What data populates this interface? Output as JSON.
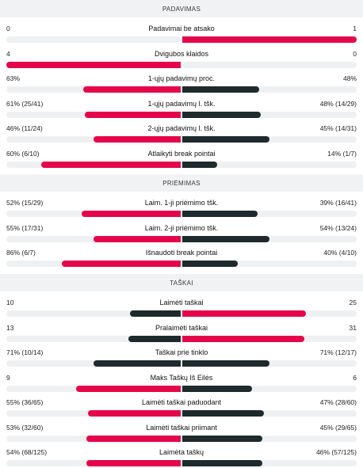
{
  "colors": {
    "accent": "#e4054a",
    "dark": "#1e2a2c",
    "track": "#eef0f2",
    "header_bg": "#f1f2f4"
  },
  "sections": [
    {
      "title": "PADAVIMAS",
      "stats": [
        {
          "label": "Padavimai be atsako",
          "home": "0",
          "away": "1",
          "home_frac": 0.0,
          "away_frac": 1.0,
          "leader": "away"
        },
        {
          "label": "Dvigubos klaidos",
          "home": "4",
          "away": "0",
          "home_frac": 1.0,
          "away_frac": 0.0,
          "leader": "home"
        },
        {
          "label": "1-ųjų padavimų proc.",
          "home": "63%",
          "away": "48%",
          "home_frac": 0.56,
          "away_frac": 0.44,
          "leader": "home"
        },
        {
          "label": "1-ųjų padavimų l. tšk.",
          "home": "61% (25/41)",
          "away": "48% (14/29)",
          "home_frac": 0.55,
          "away_frac": 0.45,
          "leader": "home"
        },
        {
          "label": "2-ųjų padavimų l. tšk.",
          "home": "46% (11/24)",
          "away": "45% (14/31)",
          "home_frac": 0.5,
          "away_frac": 0.5,
          "leader": "home"
        },
        {
          "label": "Atlaikyti break pointai",
          "home": "60% (6/10)",
          "away": "14% (1/7)",
          "home_frac": 0.8,
          "away_frac": 0.2,
          "leader": "home"
        }
      ]
    },
    {
      "title": "PRIĖMIMAS",
      "stats": [
        {
          "label": "Laim. 1-ji priėmimo tšk.",
          "home": "52% (15/29)",
          "away": "39% (16/41)",
          "home_frac": 0.57,
          "away_frac": 0.43,
          "leader": "home"
        },
        {
          "label": "Laim. 2-ji priėmimo tšk.",
          "home": "55% (17/31)",
          "away": "54% (13/24)",
          "home_frac": 0.5,
          "away_frac": 0.5,
          "leader": "home"
        },
        {
          "label": "Išnaudoti break pointai",
          "home": "86% (6/7)",
          "away": "40% (4/10)",
          "home_frac": 0.68,
          "away_frac": 0.32,
          "leader": "home"
        }
      ]
    },
    {
      "title": "TAŠKAI",
      "stats": [
        {
          "label": "Laimėti taškai",
          "home": "10",
          "away": "25",
          "home_frac": 0.29,
          "away_frac": 0.71,
          "leader": "away"
        },
        {
          "label": "Pralaimėti taškai",
          "home": "13",
          "away": "31",
          "home_frac": 0.3,
          "away_frac": 0.7,
          "leader": "away"
        },
        {
          "label": "Taškai prie tinklo",
          "home": "71% (10/14)",
          "away": "71% (12/17)",
          "home_frac": 0.5,
          "away_frac": 0.5,
          "leader": "none"
        },
        {
          "label": "Maks Taškų Iš Eilės",
          "home": "9",
          "away": "6",
          "home_frac": 0.6,
          "away_frac": 0.4,
          "leader": "home"
        },
        {
          "label": "Laimėti taškai paduodant",
          "home": "55% (36/65)",
          "away": "47% (28/60)",
          "home_frac": 0.53,
          "away_frac": 0.47,
          "leader": "home"
        },
        {
          "label": "Laimėti taškai priimant",
          "home": "53% (32/60)",
          "away": "45% (29/65)",
          "home_frac": 0.54,
          "away_frac": 0.46,
          "leader": "home"
        },
        {
          "label": "Laimėta taškų",
          "home": "54% (68/125)",
          "away": "46% (57/125)",
          "home_frac": 0.54,
          "away_frac": 0.46,
          "leader": "home"
        }
      ]
    }
  ]
}
